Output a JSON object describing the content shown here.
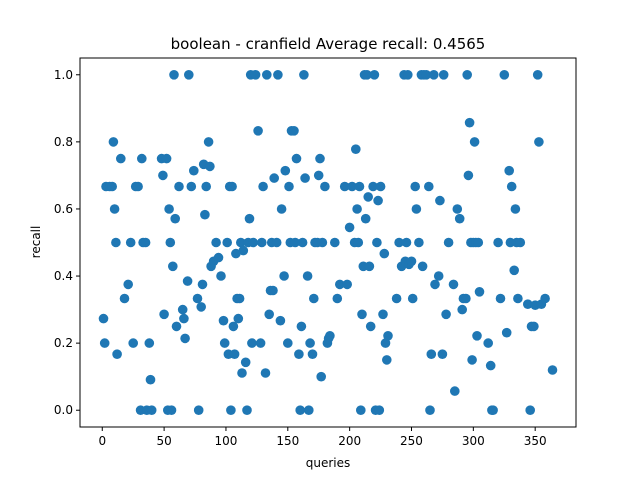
{
  "chart_data": {
    "type": "scatter",
    "title": "boolean - cranfield  Average recall: 0.4565",
    "xlabel": "queries",
    "ylabel": "recall",
    "xlim": [
      -18,
      383
    ],
    "ylim": [
      -0.05,
      1.05
    ],
    "xticks": [
      0,
      50,
      100,
      150,
      200,
      250,
      300,
      350
    ],
    "yticks": [
      0.0,
      0.2,
      0.4,
      0.6,
      0.8,
      1.0
    ],
    "ytick_labels": [
      "0.0",
      "0.2",
      "0.4",
      "0.6",
      "0.8",
      "1.0"
    ],
    "grid": false,
    "marker_color": "#1f77b4",
    "points": [
      [
        1,
        0.273
      ],
      [
        2,
        0.2
      ],
      [
        3,
        0.667
      ],
      [
        6,
        0.667
      ],
      [
        8,
        0.667
      ],
      [
        9,
        0.8
      ],
      [
        10,
        0.6
      ],
      [
        11,
        0.5
      ],
      [
        12,
        0.167
      ],
      [
        15,
        0.75
      ],
      [
        18,
        0.333
      ],
      [
        21,
        0.375
      ],
      [
        23,
        0.5
      ],
      [
        25,
        0.2
      ],
      [
        27,
        0.667
      ],
      [
        29,
        0.667
      ],
      [
        31,
        0
      ],
      [
        32,
        0.75
      ],
      [
        33,
        0.5
      ],
      [
        35,
        0.5
      ],
      [
        36,
        0
      ],
      [
        38,
        0.2
      ],
      [
        39,
        0.091
      ],
      [
        40,
        0
      ],
      [
        48,
        0.75
      ],
      [
        49,
        0.7
      ],
      [
        50,
        0.286
      ],
      [
        52,
        0.75
      ],
      [
        53,
        0
      ],
      [
        54,
        0.6
      ],
      [
        55,
        0.5
      ],
      [
        56,
        0
      ],
      [
        57,
        0.429
      ],
      [
        58,
        1.0
      ],
      [
        59,
        0.571
      ],
      [
        60,
        0.25
      ],
      [
        62,
        0.667
      ],
      [
        65,
        0.3
      ],
      [
        66,
        0.273
      ],
      [
        67,
        0.214
      ],
      [
        69,
        0.385
      ],
      [
        70,
        1.0
      ],
      [
        72,
        0.667
      ],
      [
        74,
        0.714
      ],
      [
        77,
        0.333
      ],
      [
        78,
        0
      ],
      [
        80,
        0.308
      ],
      [
        81,
        0.375
      ],
      [
        82,
        0.733
      ],
      [
        83,
        0.583
      ],
      [
        84,
        0.667
      ],
      [
        86,
        0.8
      ],
      [
        87,
        0.727
      ],
      [
        88,
        0.429
      ],
      [
        90,
        0.444
      ],
      [
        92,
        0.5
      ],
      [
        94,
        0.455
      ],
      [
        96,
        0.4
      ],
      [
        98,
        0.267
      ],
      [
        99,
        0.2
      ],
      [
        101,
        0.5
      ],
      [
        102,
        0.167
      ],
      [
        103,
        0.667
      ],
      [
        104,
        0
      ],
      [
        105,
        0.667
      ],
      [
        106,
        0.25
      ],
      [
        107,
        0.167
      ],
      [
        108,
        0.467
      ],
      [
        109,
        0.333
      ],
      [
        110,
        0.273
      ],
      [
        111,
        0.333
      ],
      [
        112,
        0.5
      ],
      [
        113,
        0.111
      ],
      [
        114,
        0.476
      ],
      [
        116,
        0.143
      ],
      [
        117,
        0
      ],
      [
        118,
        0.5
      ],
      [
        119,
        0.571
      ],
      [
        120,
        1.0
      ],
      [
        121,
        0.2
      ],
      [
        122,
        0.5
      ],
      [
        124,
        1.0
      ],
      [
        126,
        0.833
      ],
      [
        128,
        0.2
      ],
      [
        129,
        0.5
      ],
      [
        130,
        0.667
      ],
      [
        132,
        0.111
      ],
      [
        133,
        1.0
      ],
      [
        135,
        0.286
      ],
      [
        136,
        0.357
      ],
      [
        137,
        0.5
      ],
      [
        138,
        0.357
      ],
      [
        139,
        0.692
      ],
      [
        141,
        0.5
      ],
      [
        142,
        1.0
      ],
      [
        144,
        0.267
      ],
      [
        145,
        0.6
      ],
      [
        147,
        0.4
      ],
      [
        148,
        0.714
      ],
      [
        150,
        0.2
      ],
      [
        151,
        0.667
      ],
      [
        152,
        0.5
      ],
      [
        153,
        0.833
      ],
      [
        155,
        0.833
      ],
      [
        156,
        0.5
      ],
      [
        157,
        0.75
      ],
      [
        159,
        0.167
      ],
      [
        160,
        0
      ],
      [
        161,
        0.25
      ],
      [
        162,
        0.5
      ],
      [
        163,
        1.0
      ],
      [
        164,
        0.692
      ],
      [
        166,
        0.4
      ],
      [
        167,
        0
      ],
      [
        168,
        0.2
      ],
      [
        170,
        0.167
      ],
      [
        171,
        0.333
      ],
      [
        172,
        0.5
      ],
      [
        174,
        0.5
      ],
      [
        175,
        0.7
      ],
      [
        176,
        0.75
      ],
      [
        177,
        0.1
      ],
      [
        178,
        0.5
      ],
      [
        180,
        0.667
      ],
      [
        182,
        0.2
      ],
      [
        183,
        0.214
      ],
      [
        184,
        0.222
      ],
      [
        188,
        0.5
      ],
      [
        190,
        0.333
      ],
      [
        192,
        0.375
      ],
      [
        196,
        0.667
      ],
      [
        198,
        0.375
      ],
      [
        200,
        0.545
      ],
      [
        202,
        0.667
      ],
      [
        204,
        0.5
      ],
      [
        205,
        0.778
      ],
      [
        206,
        0.6
      ],
      [
        207,
        0.5
      ],
      [
        208,
        0.667
      ],
      [
        209,
        0
      ],
      [
        210,
        0.286
      ],
      [
        211,
        0.429
      ],
      [
        212,
        1.0
      ],
      [
        213,
        0.571
      ],
      [
        214,
        1.0
      ],
      [
        215,
        0.636
      ],
      [
        216,
        0.429
      ],
      [
        217,
        0.25
      ],
      [
        219,
        0.667
      ],
      [
        220,
        1.0
      ],
      [
        221,
        0
      ],
      [
        222,
        0.5
      ],
      [
        223,
        0.625
      ],
      [
        224,
        0
      ],
      [
        225,
        0.667
      ],
      [
        227,
        0.286
      ],
      [
        228,
        0.467
      ],
      [
        229,
        0.2
      ],
      [
        230,
        0.15
      ],
      [
        231,
        0.222
      ],
      [
        238,
        0.333
      ],
      [
        240,
        0.5
      ],
      [
        242,
        0.429
      ],
      [
        244,
        1.0
      ],
      [
        245,
        0.444
      ],
      [
        246,
        0.5
      ],
      [
        247,
        1.0
      ],
      [
        248,
        0.435
      ],
      [
        250,
        0.444
      ],
      [
        251,
        0.333
      ],
      [
        253,
        0.667
      ],
      [
        254,
        0.6
      ],
      [
        256,
        0.5
      ],
      [
        258,
        1.0
      ],
      [
        259,
        0.429
      ],
      [
        260,
        1.0
      ],
      [
        262,
        1.0
      ],
      [
        264,
        0.667
      ],
      [
        265,
        0
      ],
      [
        266,
        0.167
      ],
      [
        268,
        1.0
      ],
      [
        269,
        0.375
      ],
      [
        272,
        0.4
      ],
      [
        273,
        0.625
      ],
      [
        275,
        0.167
      ],
      [
        276,
        1.0
      ],
      [
        278,
        0.286
      ],
      [
        280,
        0.5
      ],
      [
        284,
        0.375
      ],
      [
        285,
        0.057
      ],
      [
        287,
        0.6
      ],
      [
        289,
        0.571
      ],
      [
        291,
        0.3
      ],
      [
        292,
        0.333
      ],
      [
        294,
        0.333
      ],
      [
        295,
        1.0
      ],
      [
        296,
        0.7
      ],
      [
        297,
        0.857
      ],
      [
        298,
        0.5
      ],
      [
        299,
        0.15
      ],
      [
        300,
        0.5
      ],
      [
        301,
        0.8
      ],
      [
        302,
        0.5
      ],
      [
        303,
        0.222
      ],
      [
        304,
        0.5
      ],
      [
        305,
        0.353
      ],
      [
        312,
        0.2
      ],
      [
        314,
        0.133
      ],
      [
        315,
        0
      ],
      [
        316,
        0
      ],
      [
        320,
        0.5
      ],
      [
        322,
        0.333
      ],
      [
        325,
        1.0
      ],
      [
        327,
        0.231
      ],
      [
        329,
        0.714
      ],
      [
        330,
        0.5
      ],
      [
        331,
        0.667
      ],
      [
        333,
        0.417
      ],
      [
        334,
        0.6
      ],
      [
        335,
        0.5
      ],
      [
        336,
        0.333
      ],
      [
        338,
        0.5
      ],
      [
        344,
        0.316
      ],
      [
        346,
        0
      ],
      [
        347,
        0.25
      ],
      [
        349,
        0.25
      ],
      [
        350,
        0.313
      ],
      [
        352,
        1.0
      ],
      [
        353,
        0.8
      ],
      [
        355,
        0.316
      ],
      [
        358,
        0.333
      ],
      [
        364,
        0.12
      ]
    ]
  }
}
